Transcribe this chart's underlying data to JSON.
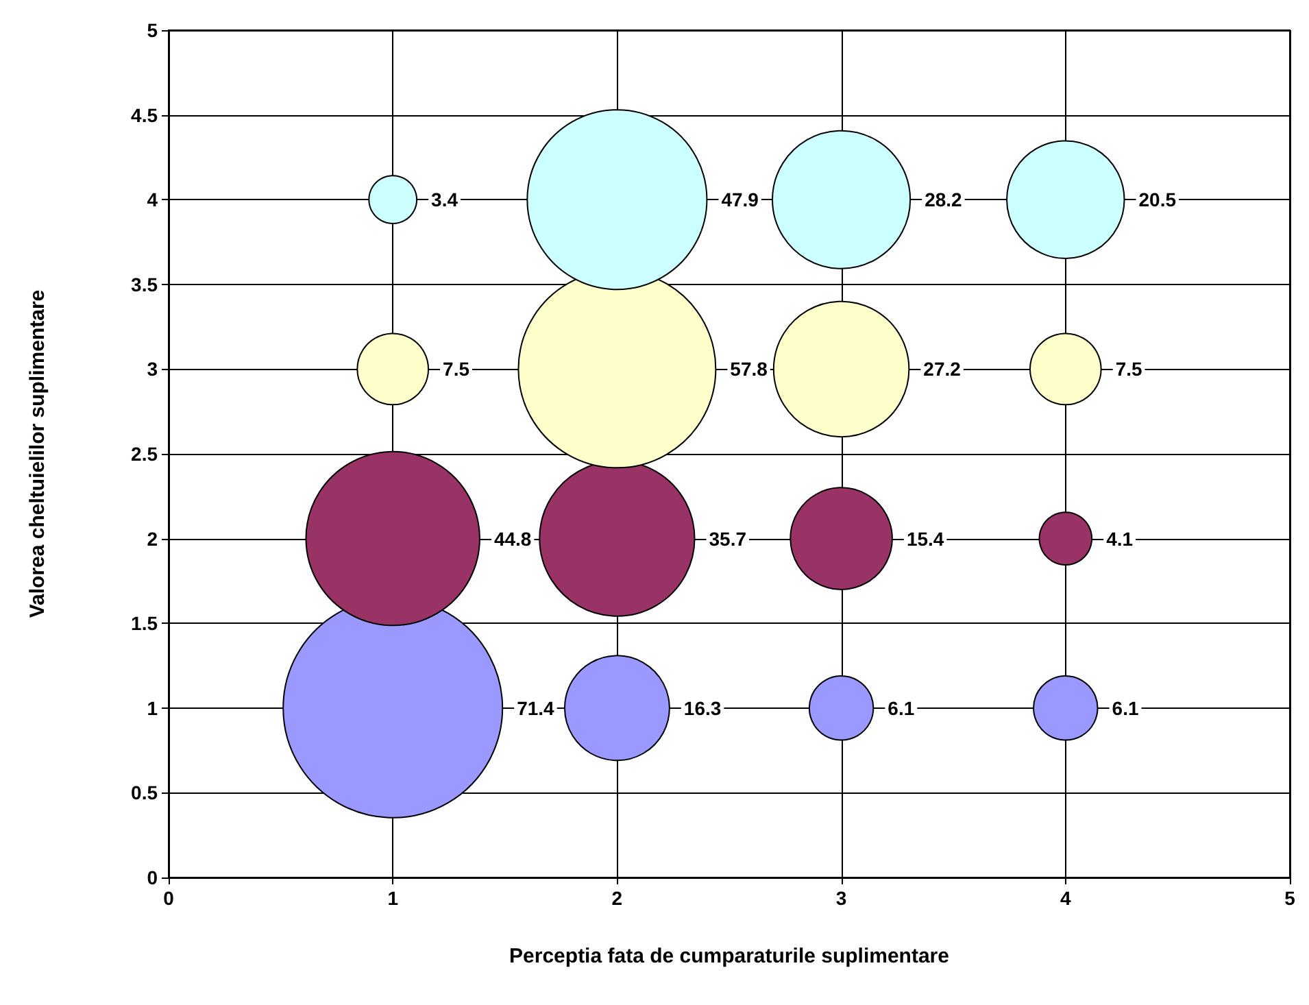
{
  "chart_data": {
    "type": "bubble",
    "xlabel": "Perceptia fata de cumparaturile suplimentare",
    "ylabel": "Valorea cheltuielilor suplimentare",
    "xlim": [
      0,
      5
    ],
    "xticks": [
      0,
      1,
      2,
      3,
      4,
      5
    ],
    "ylim": [
      0,
      5
    ],
    "yticks": [
      0,
      0.5,
      1,
      1.5,
      2,
      2.5,
      3,
      3.5,
      4,
      4.5,
      5
    ],
    "grid": true,
    "marker": "circle",
    "series": [
      {
        "color": "#9999ff",
        "x": [
          1,
          2,
          3,
          4
        ],
        "values": [
          1,
          1,
          1,
          1
        ],
        "sizes": [
          71.4,
          16.3,
          6.1,
          6.1
        ],
        "value_labels": [
          "71.4",
          "16.3",
          "6.1",
          "6.1"
        ]
      },
      {
        "color": "#993366",
        "x": [
          1,
          2,
          3,
          4
        ],
        "values": [
          2,
          2,
          2,
          2
        ],
        "sizes": [
          44.8,
          35.7,
          15.4,
          4.1
        ],
        "value_labels": [
          "44.8",
          "35.7",
          "15.4",
          "4.1"
        ]
      },
      {
        "color": "#ffffcc",
        "x": [
          1,
          2,
          3,
          4
        ],
        "values": [
          3,
          3,
          3,
          3
        ],
        "sizes": [
          7.5,
          57.8,
          27.2,
          7.5
        ],
        "value_labels": [
          "7.5",
          "57.8",
          "27.2",
          "7.5"
        ]
      },
      {
        "color": "#ccffff",
        "x": [
          1,
          2,
          3,
          4
        ],
        "values": [
          4,
          4,
          4,
          4
        ],
        "sizes": [
          3.4,
          47.9,
          28.2,
          20.5
        ],
        "value_labels": [
          "3.4",
          "47.9",
          "28.2",
          "20.5"
        ]
      }
    ]
  }
}
